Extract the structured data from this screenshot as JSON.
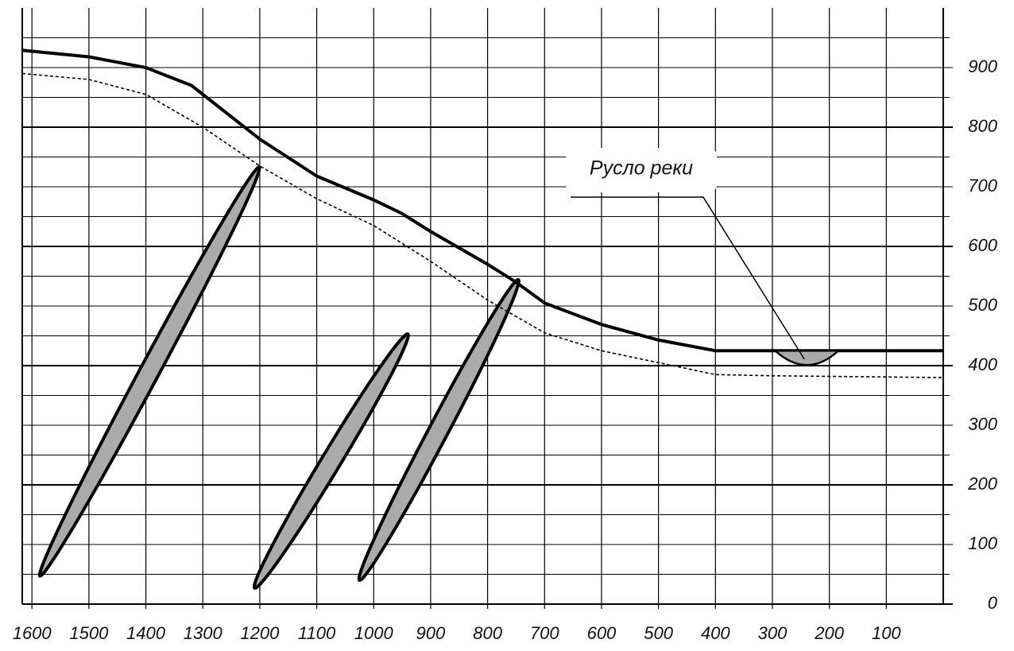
{
  "chart_data": {
    "type": "line",
    "xlim": [
      1617,
      0
    ],
    "ylim": [
      0,
      1000
    ],
    "xticks": [
      1600,
      1500,
      1400,
      1300,
      1200,
      1100,
      1000,
      900,
      800,
      700,
      600,
      500,
      400,
      300,
      200,
      100
    ],
    "yticks": [
      0,
      100,
      200,
      300,
      400,
      500,
      600,
      700,
      800,
      900
    ],
    "yminor": [
      50,
      150,
      250,
      350,
      450,
      550,
      650,
      750,
      850,
      950
    ],
    "grid": true,
    "series": [
      {
        "style": "solid",
        "color": "#000000",
        "x": [
          1617,
          1500,
          1400,
          1320,
          1300,
          1200,
          1100,
          1000,
          950,
          900,
          800,
          750,
          700,
          600,
          500,
          400,
          0
        ],
        "values": [
          929,
          918,
          900,
          870,
          855,
          780,
          718,
          678,
          655,
          625,
          570,
          540,
          505,
          469,
          443,
          425,
          425
        ]
      },
      {
        "style": "dashed",
        "color": "#000000",
        "x": [
          1617,
          1500,
          1400,
          1300,
          1200,
          1100,
          1000,
          900,
          800,
          700,
          600,
          500,
          400,
          300,
          0
        ],
        "values": [
          890,
          880,
          855,
          800,
          735,
          680,
          635,
          575,
          510,
          455,
          425,
          405,
          385,
          383,
          380
        ]
      }
    ],
    "bodies": {
      "color": "#aaaaaa",
      "x1": [
        1586,
        1209,
        1025
      ],
      "y1": [
        47,
        27,
        40
      ],
      "x2": [
        1201,
        940,
        746
      ],
      "y2": [
        733,
        453,
        544
      ]
    },
    "river_channel": {
      "x": [
        295,
        184
      ],
      "y_top": 425,
      "y_bottom": 401
    },
    "annotation": {
      "text": "Русло реки",
      "x": 244,
      "y": 411
    }
  }
}
